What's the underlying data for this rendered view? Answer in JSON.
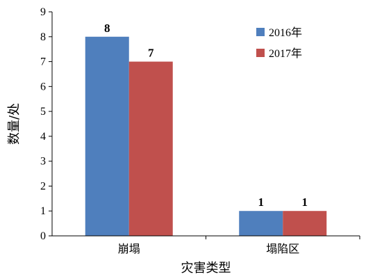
{
  "chart_data": {
    "type": "bar",
    "categories": [
      "崩塌",
      "塌陷区"
    ],
    "series": [
      {
        "name": "2016年",
        "values": [
          8,
          1
        ],
        "color": "#4f7fbd"
      },
      {
        "name": "2017年",
        "values": [
          7,
          1
        ],
        "color": "#c0504d"
      }
    ],
    "xlabel": "灾害类型",
    "ylabel": "数量/处",
    "ylim": [
      0,
      9
    ],
    "yticks": [
      0,
      1,
      2,
      3,
      4,
      5,
      6,
      7,
      8,
      9
    ],
    "grid": false,
    "legend_position": "top-right",
    "data_labels": true
  }
}
